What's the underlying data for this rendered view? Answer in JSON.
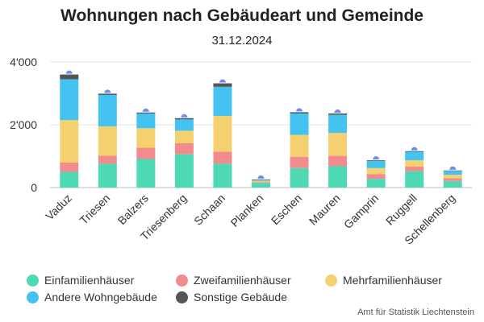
{
  "chart_data": {
    "type": "bar",
    "stacked": true,
    "title": "Wohnungen nach Gebäudeart und Gemeinde",
    "subtitle": "31.12.2024",
    "source": "Amt für Statistik Liechtenstein",
    "categories": [
      "Vaduz",
      "Triesen",
      "Balzers",
      "Triesenberg",
      "Schaan",
      "Planken",
      "Eschen",
      "Mauren",
      "Gamprin",
      "Ruggell",
      "Schellenberg"
    ],
    "ylim": [
      0,
      4000
    ],
    "yticks": [
      0,
      2000,
      4000
    ],
    "ytick_labels": [
      "0",
      "2'000",
      "4'000"
    ],
    "grid": true,
    "legend_position": "bottom",
    "series": [
      {
        "name": "Einfamilienhäuser",
        "color": "#4dd9b4",
        "values": [
          500,
          760,
          910,
          1060,
          760,
          150,
          620,
          680,
          280,
          520,
          210
        ]
      },
      {
        "name": "Zweifamilienhäuser",
        "color": "#f28b8b",
        "values": [
          300,
          260,
          360,
          350,
          380,
          25,
          360,
          330,
          150,
          150,
          90
        ]
      },
      {
        "name": "Mehrfamilienhäuser",
        "color": "#f5d06f",
        "values": [
          1350,
          930,
          620,
          400,
          1140,
          40,
          700,
          730,
          190,
          200,
          110
        ]
      },
      {
        "name": "Andere Wohngebäude",
        "color": "#45c3f0",
        "values": [
          1300,
          1000,
          470,
          360,
          930,
          30,
          680,
          580,
          230,
          270,
          120
        ]
      },
      {
        "name": "Sonstige Gebäude",
        "color": "#555555",
        "values": [
          150,
          40,
          30,
          40,
          110,
          15,
          40,
          40,
          20,
          20,
          15
        ]
      }
    ]
  }
}
